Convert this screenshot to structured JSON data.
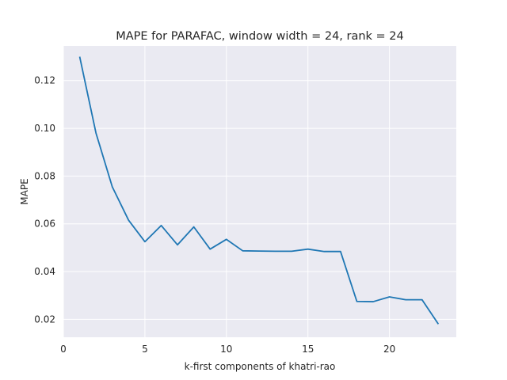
{
  "chart_data": {
    "type": "line",
    "title": "MAPE for PARAFAC, window width = 24, rank = 24",
    "xlabel": "k-first components of khatri-rao",
    "ylabel": "MAPE",
    "xlim": [
      0,
      24.1
    ],
    "ylim": [
      0.0125,
      0.1345
    ],
    "xticks": [
      0,
      5,
      10,
      15,
      20
    ],
    "yticks": [
      0.02,
      0.04,
      0.06,
      0.08,
      0.1,
      0.12
    ],
    "xtick_labels": [
      "0",
      "5",
      "10",
      "15",
      "20"
    ],
    "ytick_labels": [
      "0.02",
      "0.04",
      "0.06",
      "0.08",
      "0.10",
      "0.12"
    ],
    "grid": true,
    "background": "#eaeaf2",
    "series": [
      {
        "color": "#1f77b4",
        "x": [
          1,
          2,
          3,
          4,
          5,
          6,
          7,
          8,
          9,
          10,
          11,
          12,
          13,
          14,
          15,
          16,
          17,
          18,
          19,
          20,
          21,
          22,
          23
        ],
        "y": [
          0.13,
          0.098,
          0.0755,
          0.0615,
          0.0525,
          0.0593,
          0.0512,
          0.0587,
          0.0494,
          0.0535,
          0.0487,
          0.0486,
          0.0485,
          0.0485,
          0.0494,
          0.0484,
          0.0484,
          0.0275,
          0.0274,
          0.0294,
          0.0282,
          0.0282,
          0.018
        ]
      }
    ]
  }
}
